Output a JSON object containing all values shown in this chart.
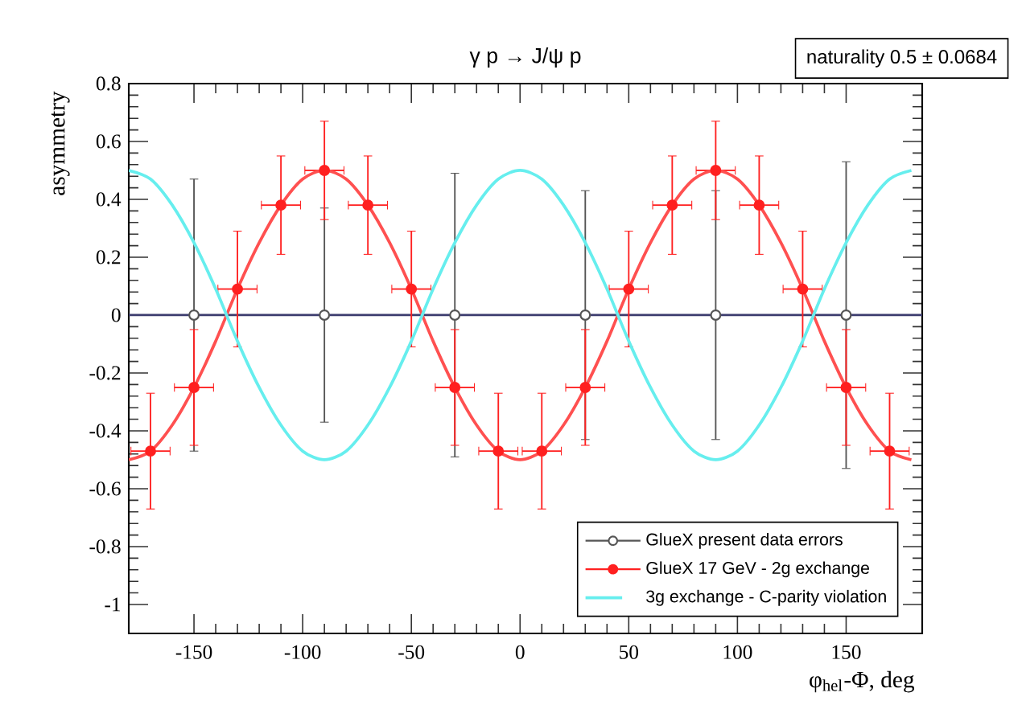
{
  "chart_data": {
    "type": "scatter",
    "title": "γ p → J/ψ p",
    "xlabel": "φ$_{hel}$-Φ, deg",
    "ylabel": "asymmetry",
    "annotations": [
      "naturality    0.5 ± 0.0684"
    ],
    "xlim": [
      -180,
      185
    ],
    "ylim": [
      -1.1,
      0.8
    ],
    "xticks": [
      -150,
      -100,
      -50,
      0,
      50,
      100,
      150
    ],
    "yticks": [
      -1,
      -0.8,
      -0.6,
      -0.4,
      -0.2,
      0,
      0.2,
      0.4,
      0.6,
      0.8
    ],
    "legend": "bottom right",
    "grid": false,
    "ref_lines": [
      {
        "axis": "y",
        "value": 0,
        "color": "#3c3c6e"
      }
    ],
    "series": [
      {
        "name": "GlueX present data errors",
        "marker": "circle",
        "color": "#555555",
        "x": [
          -150,
          -90,
          -30,
          30,
          90,
          150
        ],
        "values": [
          0,
          0,
          0,
          0,
          0,
          0
        ],
        "errors": [
          0.47,
          0.37,
          0.49,
          0.43,
          0.43,
          0.53
        ]
      },
      {
        "name": "GlueX 17 GeV - 2g exchange",
        "marker": "circle",
        "color": "#ff2020",
        "x": [
          -170,
          -150,
          -130,
          -110,
          -90,
          -70,
          -50,
          -30,
          -10,
          10,
          30,
          50,
          70,
          90,
          110,
          130,
          150,
          170
        ],
        "values": [
          -0.47,
          -0.25,
          0.09,
          0.38,
          0.5,
          0.38,
          0.09,
          -0.25,
          -0.47,
          -0.47,
          -0.25,
          0.09,
          0.38,
          0.5,
          0.38,
          0.09,
          -0.25,
          -0.47
        ],
        "errors": [
          0.2,
          0.2,
          0.2,
          0.17,
          0.17,
          0.17,
          0.2,
          0.2,
          0.2,
          0.2,
          0.2,
          0.2,
          0.17,
          0.17,
          0.17,
          0.2,
          0.2,
          0.2
        ],
        "xerrors": [
          9,
          9,
          9,
          9,
          9,
          9,
          9,
          9,
          9,
          9,
          9,
          9,
          9,
          9,
          9,
          9,
          9,
          9
        ]
      },
      {
        "type": "line",
        "marker": "none",
        "color": "#ff5050",
        "x": [
          -180,
          -170,
          -160,
          -150,
          -140,
          -130,
          -120,
          -110,
          -100,
          -90,
          -80,
          -70,
          -60,
          -50,
          -40,
          -30,
          -20,
          -10,
          0,
          10,
          20,
          30,
          40,
          50,
          60,
          70,
          80,
          90,
          100,
          110,
          120,
          130,
          140,
          150,
          160,
          170,
          180
        ],
        "values": [
          -0.5,
          -0.47,
          -0.38,
          -0.25,
          -0.09,
          0.09,
          0.25,
          0.38,
          0.47,
          0.5,
          0.47,
          0.38,
          0.25,
          0.09,
          -0.09,
          -0.25,
          -0.38,
          -0.47,
          -0.5,
          -0.47,
          -0.38,
          -0.25,
          -0.09,
          0.09,
          0.25,
          0.38,
          0.47,
          0.5,
          0.47,
          0.38,
          0.25,
          0.09,
          -0.09,
          -0.25,
          -0.38,
          -0.47,
          -0.5
        ]
      },
      {
        "name": "3g exchange - C-parity violation",
        "type": "line",
        "marker": "none",
        "color": "#66eeee",
        "x": [
          -180,
          -170,
          -160,
          -150,
          -140,
          -130,
          -120,
          -110,
          -100,
          -90,
          -80,
          -70,
          -60,
          -50,
          -40,
          -30,
          -20,
          -10,
          0,
          10,
          20,
          30,
          40,
          50,
          60,
          70,
          80,
          90,
          100,
          110,
          120,
          130,
          140,
          150,
          160,
          170,
          180
        ],
        "values": [
          0.5,
          0.47,
          0.38,
          0.25,
          0.09,
          -0.09,
          -0.25,
          -0.38,
          -0.47,
          -0.5,
          -0.47,
          -0.38,
          -0.25,
          -0.09,
          0.09,
          0.25,
          0.38,
          0.47,
          0.5,
          0.47,
          0.38,
          0.25,
          0.09,
          -0.09,
          -0.25,
          -0.38,
          -0.47,
          -0.5,
          -0.47,
          -0.38,
          -0.25,
          -0.09,
          0.09,
          0.25,
          0.38,
          0.47,
          0.5
        ]
      }
    ]
  }
}
